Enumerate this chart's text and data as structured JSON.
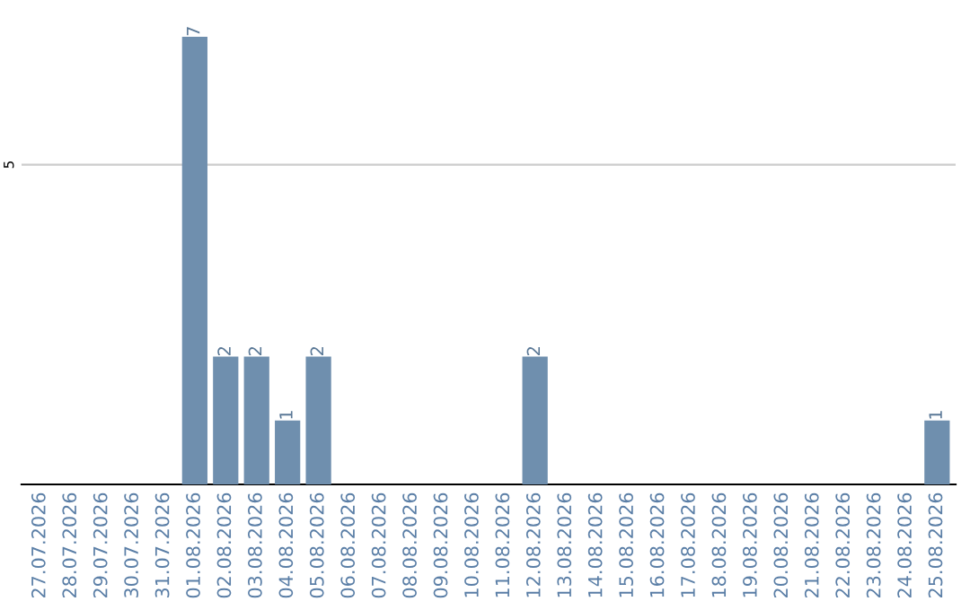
{
  "chart_data": {
    "type": "bar",
    "categories": [
      "27.07.2026",
      "28.07.2026",
      "29.07.2026",
      "30.07.2026",
      "31.07.2026",
      "01.08.2026",
      "02.08.2026",
      "03.08.2026",
      "04.08.2026",
      "05.08.2026",
      "06.08.2026",
      "07.08.2026",
      "08.08.2026",
      "09.08.2026",
      "10.08.2026",
      "11.08.2026",
      "12.08.2026",
      "13.08.2026",
      "14.08.2026",
      "15.08.2026",
      "16.08.2026",
      "17.08.2026",
      "18.08.2026",
      "19.08.2026",
      "20.08.2026",
      "21.08.2026",
      "22.08.2026",
      "23.08.2026",
      "24.08.2026",
      "25.08.2026"
    ],
    "values": [
      0,
      0,
      0,
      0,
      0,
      7,
      2,
      2,
      1,
      2,
      0,
      0,
      0,
      0,
      0,
      0,
      2,
      0,
      0,
      0,
      0,
      0,
      0,
      0,
      0,
      0,
      0,
      0,
      0,
      1
    ],
    "value_labels": [
      null,
      null,
      null,
      null,
      null,
      "7",
      "2",
      "2",
      "1",
      "2",
      null,
      null,
      null,
      null,
      null,
      null,
      "2",
      null,
      null,
      null,
      null,
      null,
      null,
      null,
      null,
      null,
      null,
      null,
      null,
      "1"
    ],
    "color": "#6f8fae",
    "ref_lines": [
      {
        "axis": "y",
        "value": 5,
        "label": "5",
        "color": "#cccccc"
      }
    ]
  }
}
